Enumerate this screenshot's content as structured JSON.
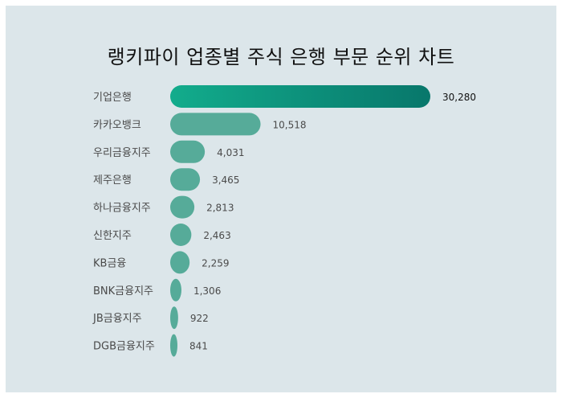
{
  "title": "랭키파이 업종별 주식 은행 부문 순위 차트",
  "colors": {
    "background": "#dce6ea",
    "bar": "#56ab99",
    "top_bar_start": "#12ac8c",
    "top_bar_end": "#08776b"
  },
  "chart_data": {
    "type": "bar",
    "orientation": "horizontal",
    "title": "랭키파이 업종별 주식 은행 부문 순위 차트",
    "categories": [
      "기업은행",
      "카카오뱅크",
      "우리금융지주",
      "제주은행",
      "하나금융지주",
      "신한지주",
      "KB금융",
      "BNK금융지주",
      "JB금융지주",
      "DGB금융지주"
    ],
    "values": [
      30280,
      10518,
      4031,
      3465,
      2813,
      2463,
      2259,
      1306,
      922,
      841
    ],
    "value_labels": [
      "30,280",
      "10,518",
      "4,031",
      "3,465",
      "2,813",
      "2,463",
      "2,259",
      "1,306",
      "922",
      "841"
    ],
    "xlim": [
      0,
      30280
    ],
    "grid": false,
    "legend": "none"
  }
}
